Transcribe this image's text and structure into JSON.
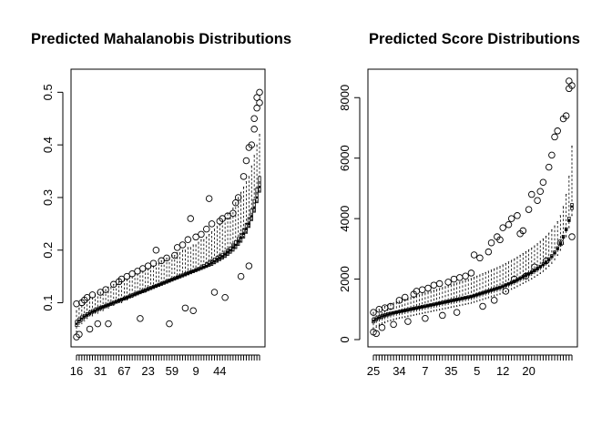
{
  "chart_data": [
    {
      "type": "boxplot",
      "title": "Predicted Mahalanobis Distributions",
      "xlabel": "",
      "ylabel": "",
      "ylim": [
        0.03,
        0.53
      ],
      "yticks": [
        0.1,
        0.2,
        0.3,
        0.4,
        0.5
      ],
      "ytick_labels": [
        "0.1",
        "0.2",
        "0.3",
        "0.4",
        "0.5"
      ],
      "n_groups": 70,
      "xtick_positions": [
        1,
        10,
        19,
        28,
        37,
        46,
        55,
        64
      ],
      "xtick_labels": [
        "16",
        "31",
        "67",
        "23",
        "59",
        "9",
        "44",
        ""
      ],
      "group_summary": {
        "lower_whisker": [
          0.045,
          0.055,
          0.06,
          0.065,
          0.07,
          0.075,
          0.075,
          0.08,
          0.08,
          0.085,
          0.085,
          0.09,
          0.09,
          0.095,
          0.095,
          0.1,
          0.1,
          0.1,
          0.105,
          0.105,
          0.11,
          0.11,
          0.115,
          0.115,
          0.12,
          0.12,
          0.12,
          0.125,
          0.125,
          0.13,
          0.13,
          0.135,
          0.135,
          0.14,
          0.14,
          0.14,
          0.145,
          0.145,
          0.15,
          0.15,
          0.155,
          0.155,
          0.16,
          0.16,
          0.16,
          0.165,
          0.165,
          0.17,
          0.17,
          0.175,
          0.175,
          0.18,
          0.18,
          0.185,
          0.19,
          0.19,
          0.195,
          0.2,
          0.2,
          0.21,
          0.21,
          0.22,
          0.23,
          0.24,
          0.25,
          0.26,
          0.27,
          0.29,
          0.31,
          0.33
        ],
        "q1": [
          0.055,
          0.062,
          0.066,
          0.071,
          0.074,
          0.077,
          0.08,
          0.082,
          0.085,
          0.087,
          0.089,
          0.091,
          0.093,
          0.095,
          0.097,
          0.099,
          0.101,
          0.103,
          0.105,
          0.107,
          0.109,
          0.111,
          0.113,
          0.115,
          0.117,
          0.119,
          0.121,
          0.123,
          0.125,
          0.127,
          0.129,
          0.131,
          0.133,
          0.135,
          0.137,
          0.139,
          0.141,
          0.143,
          0.145,
          0.147,
          0.149,
          0.151,
          0.153,
          0.155,
          0.157,
          0.159,
          0.161,
          0.163,
          0.165,
          0.167,
          0.169,
          0.171,
          0.174,
          0.177,
          0.18,
          0.183,
          0.186,
          0.19,
          0.194,
          0.198,
          0.203,
          0.209,
          0.215,
          0.223,
          0.232,
          0.243,
          0.256,
          0.272,
          0.29,
          0.31
        ],
        "median": [
          0.06,
          0.066,
          0.07,
          0.074,
          0.077,
          0.08,
          0.083,
          0.085,
          0.088,
          0.09,
          0.092,
          0.094,
          0.096,
          0.098,
          0.1,
          0.102,
          0.104,
          0.106,
          0.108,
          0.11,
          0.112,
          0.114,
          0.116,
          0.118,
          0.12,
          0.122,
          0.124,
          0.126,
          0.128,
          0.13,
          0.132,
          0.134,
          0.136,
          0.138,
          0.14,
          0.142,
          0.144,
          0.146,
          0.148,
          0.15,
          0.152,
          0.154,
          0.156,
          0.158,
          0.16,
          0.162,
          0.164,
          0.166,
          0.168,
          0.17,
          0.173,
          0.176,
          0.179,
          0.182,
          0.185,
          0.188,
          0.192,
          0.196,
          0.2,
          0.205,
          0.21,
          0.216,
          0.223,
          0.231,
          0.24,
          0.25,
          0.264,
          0.28,
          0.3,
          0.32
        ],
        "q3": [
          0.066,
          0.071,
          0.075,
          0.078,
          0.081,
          0.084,
          0.087,
          0.089,
          0.091,
          0.093,
          0.095,
          0.097,
          0.099,
          0.101,
          0.103,
          0.105,
          0.107,
          0.109,
          0.111,
          0.113,
          0.115,
          0.117,
          0.119,
          0.121,
          0.123,
          0.125,
          0.127,
          0.129,
          0.131,
          0.133,
          0.135,
          0.137,
          0.139,
          0.141,
          0.143,
          0.145,
          0.147,
          0.149,
          0.151,
          0.153,
          0.155,
          0.157,
          0.159,
          0.161,
          0.163,
          0.165,
          0.167,
          0.17,
          0.173,
          0.176,
          0.179,
          0.182,
          0.185,
          0.188,
          0.191,
          0.194,
          0.198,
          0.202,
          0.206,
          0.212,
          0.218,
          0.224,
          0.232,
          0.241,
          0.251,
          0.262,
          0.278,
          0.296,
          0.318,
          0.34
        ],
        "upper_whisker": [
          0.085,
          0.09,
          0.095,
          0.1,
          0.105,
          0.11,
          0.11,
          0.115,
          0.12,
          0.12,
          0.125,
          0.125,
          0.13,
          0.13,
          0.135,
          0.135,
          0.14,
          0.14,
          0.145,
          0.145,
          0.15,
          0.15,
          0.155,
          0.155,
          0.16,
          0.16,
          0.165,
          0.165,
          0.17,
          0.17,
          0.175,
          0.175,
          0.18,
          0.18,
          0.185,
          0.185,
          0.19,
          0.19,
          0.195,
          0.195,
          0.2,
          0.2,
          0.205,
          0.205,
          0.21,
          0.21,
          0.215,
          0.22,
          0.22,
          0.225,
          0.23,
          0.235,
          0.24,
          0.245,
          0.25,
          0.255,
          0.26,
          0.27,
          0.27,
          0.28,
          0.29,
          0.3,
          0.31,
          0.32,
          0.33,
          0.34,
          0.36,
          0.38,
          0.4,
          0.42
        ]
      },
      "outliers": [
        [
          1,
          0.035
        ],
        [
          1,
          0.098
        ],
        [
          2,
          0.04
        ],
        [
          3,
          0.1
        ],
        [
          4,
          0.105
        ],
        [
          5,
          0.11
        ],
        [
          6,
          0.05
        ],
        [
          7,
          0.115
        ],
        [
          9,
          0.06
        ],
        [
          10,
          0.12
        ],
        [
          12,
          0.125
        ],
        [
          13,
          0.06
        ],
        [
          15,
          0.135
        ],
        [
          17,
          0.14
        ],
        [
          18,
          0.145
        ],
        [
          20,
          0.15
        ],
        [
          22,
          0.155
        ],
        [
          24,
          0.16
        ],
        [
          25,
          0.07
        ],
        [
          26,
          0.165
        ],
        [
          28,
          0.17
        ],
        [
          30,
          0.175
        ],
        [
          31,
          0.2
        ],
        [
          33,
          0.18
        ],
        [
          35,
          0.185
        ],
        [
          36,
          0.06
        ],
        [
          38,
          0.19
        ],
        [
          39,
          0.205
        ],
        [
          41,
          0.21
        ],
        [
          42,
          0.09
        ],
        [
          43,
          0.22
        ],
        [
          44,
          0.26
        ],
        [
          45,
          0.085
        ],
        [
          46,
          0.225
        ],
        [
          48,
          0.23
        ],
        [
          50,
          0.24
        ],
        [
          51,
          0.298
        ],
        [
          52,
          0.25
        ],
        [
          53,
          0.12
        ],
        [
          55,
          0.255
        ],
        [
          56,
          0.26
        ],
        [
          57,
          0.11
        ],
        [
          58,
          0.265
        ],
        [
          60,
          0.27
        ],
        [
          61,
          0.29
        ],
        [
          62,
          0.3
        ],
        [
          63,
          0.15
        ],
        [
          64,
          0.34
        ],
        [
          65,
          0.37
        ],
        [
          66,
          0.395
        ],
        [
          66,
          0.17
        ],
        [
          67,
          0.4
        ],
        [
          68,
          0.43
        ],
        [
          68,
          0.45
        ],
        [
          69,
          0.47
        ],
        [
          69,
          0.49
        ],
        [
          70,
          0.48
        ],
        [
          70,
          0.5
        ]
      ]
    },
    {
      "type": "boxplot",
      "title": "Predicted Score Distributions",
      "xlabel": "",
      "ylabel": "",
      "ylim": [
        0,
        8700
      ],
      "yticks": [
        0,
        2000,
        4000,
        6000,
        8000
      ],
      "ytick_labels": [
        "0",
        "2000",
        "4000",
        "6000",
        "8000"
      ],
      "n_groups": 70,
      "xtick_positions": [
        1,
        10,
        19,
        28,
        37,
        46,
        55,
        64
      ],
      "xtick_labels": [
        "25",
        "34",
        "7",
        "35",
        "5",
        "12",
        "20",
        ""
      ],
      "group_summary": {
        "lower_whisker": [
          300,
          400,
          450,
          500,
          550,
          600,
          620,
          650,
          680,
          700,
          720,
          740,
          760,
          780,
          800,
          820,
          840,
          860,
          880,
          900,
          920,
          940,
          960,
          980,
          1000,
          1020,
          1040,
          1060,
          1080,
          1100,
          1120,
          1140,
          1160,
          1180,
          1200,
          1230,
          1260,
          1290,
          1320,
          1350,
          1380,
          1410,
          1440,
          1470,
          1500,
          1540,
          1580,
          1620,
          1660,
          1700,
          1750,
          1800,
          1850,
          1900,
          1950,
          2000,
          2060,
          2120,
          2180,
          2250,
          2330,
          2420,
          2520,
          2640,
          2780,
          2950,
          3150,
          3400,
          3700,
          4100
        ],
        "q1": [
          550,
          620,
          670,
          710,
          750,
          780,
          810,
          840,
          860,
          880,
          900,
          920,
          940,
          960,
          980,
          1000,
          1020,
          1040,
          1060,
          1080,
          1100,
          1120,
          1140,
          1160,
          1180,
          1200,
          1220,
          1240,
          1260,
          1280,
          1300,
          1320,
          1340,
          1360,
          1380,
          1410,
          1440,
          1470,
          1500,
          1530,
          1560,
          1590,
          1620,
          1650,
          1680,
          1720,
          1760,
          1800,
          1840,
          1880,
          1930,
          1980,
          2030,
          2080,
          2130,
          2180,
          2240,
          2300,
          2370,
          2440,
          2520,
          2610,
          2710,
          2830,
          2970,
          3140,
          3350,
          3600,
          3900,
          4300
        ],
        "median": [
          620,
          680,
          730,
          770,
          800,
          830,
          860,
          880,
          900,
          920,
          940,
          960,
          980,
          1000,
          1020,
          1040,
          1060,
          1080,
          1100,
          1120,
          1140,
          1160,
          1180,
          1200,
          1220,
          1240,
          1260,
          1280,
          1300,
          1320,
          1340,
          1360,
          1380,
          1400,
          1420,
          1450,
          1480,
          1510,
          1540,
          1570,
          1600,
          1630,
          1660,
          1690,
          1720,
          1760,
          1800,
          1840,
          1880,
          1920,
          1970,
          2020,
          2070,
          2120,
          2170,
          2220,
          2280,
          2340,
          2410,
          2480,
          2560,
          2650,
          2750,
          2870,
          3010,
          3180,
          3390,
          3640,
          3950,
          4400
        ],
        "q3": [
          700,
          750,
          790,
          830,
          860,
          890,
          910,
          930,
          950,
          970,
          990,
          1010,
          1030,
          1050,
          1070,
          1090,
          1110,
          1130,
          1150,
          1170,
          1190,
          1210,
          1230,
          1250,
          1270,
          1290,
          1310,
          1330,
          1350,
          1370,
          1390,
          1410,
          1430,
          1450,
          1470,
          1500,
          1530,
          1560,
          1590,
          1620,
          1650,
          1680,
          1710,
          1740,
          1770,
          1810,
          1850,
          1890,
          1930,
          1970,
          2020,
          2070,
          2120,
          2170,
          2220,
          2270,
          2330,
          2390,
          2460,
          2540,
          2620,
          2710,
          2810,
          2930,
          3070,
          3240,
          3450,
          3700,
          4050,
          4500
        ],
        "upper_whisker": [
          900,
          950,
          1000,
          1050,
          1100,
          1150,
          1180,
          1210,
          1240,
          1270,
          1300,
          1330,
          1360,
          1390,
          1420,
          1450,
          1480,
          1510,
          1540,
          1570,
          1600,
          1630,
          1660,
          1690,
          1720,
          1750,
          1780,
          1810,
          1840,
          1870,
          1900,
          1930,
          1960,
          1990,
          2020,
          2060,
          2100,
          2140,
          2180,
          2220,
          2260,
          2300,
          2340,
          2380,
          2420,
          2470,
          2520,
          2570,
          2620,
          2670,
          2730,
          2790,
          2850,
          2910,
          2970,
          3030,
          3100,
          3170,
          3250,
          3330,
          3420,
          3520,
          3630,
          3760,
          3900,
          4100,
          4400,
          4800,
          5400,
          6400
        ]
      },
      "outliers": [
        [
          1,
          250
        ],
        [
          1,
          900
        ],
        [
          2,
          200
        ],
        [
          3,
          1000
        ],
        [
          4,
          400
        ],
        [
          5,
          1050
        ],
        [
          7,
          1100
        ],
        [
          8,
          500
        ],
        [
          10,
          1300
        ],
        [
          12,
          1400
        ],
        [
          13,
          600
        ],
        [
          15,
          1500
        ],
        [
          16,
          1600
        ],
        [
          18,
          1650
        ],
        [
          19,
          700
        ],
        [
          20,
          1700
        ],
        [
          22,
          1800
        ],
        [
          24,
          1850
        ],
        [
          25,
          800
        ],
        [
          27,
          1900
        ],
        [
          29,
          2000
        ],
        [
          30,
          900
        ],
        [
          31,
          2050
        ],
        [
          33,
          2100
        ],
        [
          35,
          2200
        ],
        [
          36,
          2800
        ],
        [
          38,
          2700
        ],
        [
          39,
          1100
        ],
        [
          41,
          2900
        ],
        [
          42,
          3200
        ],
        [
          43,
          1300
        ],
        [
          44,
          3400
        ],
        [
          45,
          3300
        ],
        [
          46,
          3700
        ],
        [
          47,
          1600
        ],
        [
          48,
          3800
        ],
        [
          49,
          4000
        ],
        [
          50,
          2000
        ],
        [
          51,
          4100
        ],
        [
          52,
          3500
        ],
        [
          53,
          3600
        ],
        [
          54,
          2100
        ],
        [
          55,
          4300
        ],
        [
          56,
          4800
        ],
        [
          57,
          2400
        ],
        [
          58,
          4600
        ],
        [
          59,
          4900
        ],
        [
          60,
          5200
        ],
        [
          61,
          2600
        ],
        [
          62,
          5700
        ],
        [
          63,
          6100
        ],
        [
          64,
          6700
        ],
        [
          65,
          6900
        ],
        [
          66,
          3200
        ],
        [
          67,
          7300
        ],
        [
          68,
          7400
        ],
        [
          69,
          8300
        ],
        [
          69,
          8550
        ],
        [
          70,
          8400
        ],
        [
          70,
          3400
        ]
      ]
    }
  ]
}
